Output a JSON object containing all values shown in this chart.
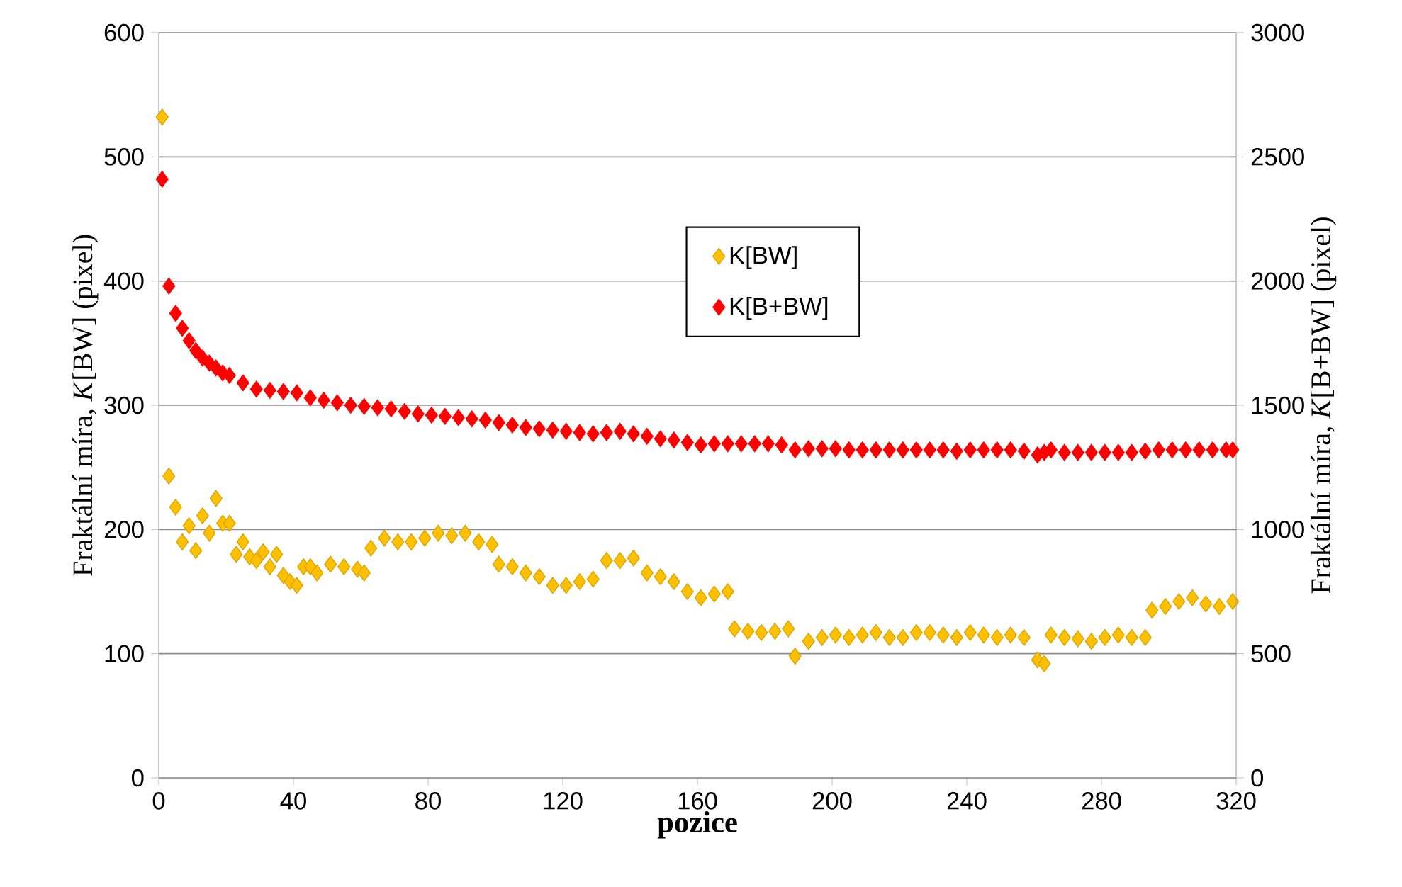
{
  "chart_data": {
    "type": "scatter",
    "xlabel": "pozice",
    "ylabel": "Fraktální míra, *K*[BW] (pixel)",
    "y2label": "Fraktální míra, *K*[B+BW] (pixel)",
    "xlim": [
      0,
      320
    ],
    "xticks": [
      0,
      40,
      80,
      120,
      160,
      200,
      240,
      280,
      320
    ],
    "ylim": [
      0,
      600
    ],
    "yticks": [
      0,
      100,
      200,
      300,
      400,
      500,
      600
    ],
    "y2lim": [
      0,
      3000
    ],
    "y2ticks": [
      0,
      500,
      1000,
      1500,
      2000,
      2500,
      3000
    ],
    "grid": "y",
    "legend": "top",
    "marker": "diamond",
    "series": [
      {
        "name": "K[BW]",
        "color": "#ffc000",
        "axis": "y",
        "x": [
          1,
          3,
          5,
          7,
          9,
          11,
          13,
          15,
          17,
          19,
          21,
          23,
          25,
          27,
          29,
          31,
          33,
          35,
          37,
          39,
          41,
          43,
          45,
          47,
          51,
          55,
          59,
          61,
          63,
          67,
          71,
          75,
          79,
          83,
          87,
          91,
          95,
          99,
          101,
          105,
          109,
          113,
          117,
          121,
          125,
          129,
          133,
          137,
          141,
          145,
          149,
          153,
          157,
          161,
          165,
          169,
          171,
          175,
          179,
          183,
          187,
          189,
          193,
          197,
          201,
          205,
          209,
          213,
          217,
          221,
          225,
          229,
          233,
          237,
          241,
          245,
          249,
          253,
          257,
          261,
          263,
          265,
          269,
          273,
          277,
          281,
          285,
          289,
          293,
          295,
          299,
          303,
          307,
          311,
          315,
          319
        ],
        "values": [
          532,
          243,
          218,
          190,
          203,
          183,
          211,
          197,
          225,
          205,
          205,
          180,
          190,
          178,
          175,
          182,
          170,
          180,
          163,
          158,
          155,
          170,
          170,
          165,
          172,
          170,
          168,
          165,
          185,
          193,
          190,
          190,
          193,
          197,
          195,
          197,
          190,
          188,
          172,
          170,
          165,
          162,
          155,
          155,
          158,
          160,
          175,
          175,
          177,
          165,
          162,
          158,
          150,
          145,
          148,
          150,
          120,
          118,
          117,
          118,
          120,
          98,
          110,
          113,
          115,
          113,
          115,
          117,
          113,
          113,
          117,
          117,
          115,
          113,
          117,
          115,
          113,
          115,
          113,
          95,
          92,
          115,
          113,
          112,
          110,
          113,
          115,
          113,
          113,
          135,
          138,
          142,
          145,
          140,
          138,
          142
        ]
      },
      {
        "name": "K[B+BW]",
        "color": "#ff0000",
        "axis": "y2",
        "x": [
          1,
          3,
          5,
          7,
          9,
          11,
          13,
          15,
          17,
          19,
          21,
          25,
          29,
          33,
          37,
          41,
          45,
          49,
          53,
          57,
          61,
          65,
          69,
          73,
          77,
          81,
          85,
          89,
          93,
          97,
          101,
          105,
          109,
          113,
          117,
          121,
          125,
          129,
          133,
          137,
          141,
          145,
          149,
          153,
          157,
          161,
          165,
          169,
          173,
          177,
          181,
          185,
          189,
          193,
          197,
          201,
          205,
          209,
          213,
          217,
          221,
          225,
          229,
          233,
          237,
          241,
          245,
          249,
          253,
          257,
          261,
          263,
          265,
          269,
          273,
          277,
          281,
          285,
          289,
          293,
          297,
          301,
          305,
          309,
          313,
          317,
          319
        ],
        "values": [
          2410,
          1980,
          1870,
          1810,
          1760,
          1720,
          1690,
          1670,
          1650,
          1630,
          1620,
          1590,
          1565,
          1560,
          1555,
          1550,
          1530,
          1520,
          1510,
          1500,
          1495,
          1490,
          1485,
          1475,
          1465,
          1460,
          1455,
          1450,
          1445,
          1440,
          1430,
          1420,
          1410,
          1405,
          1400,
          1395,
          1390,
          1385,
          1390,
          1395,
          1385,
          1375,
          1365,
          1360,
          1350,
          1340,
          1345,
          1345,
          1345,
          1345,
          1345,
          1340,
          1320,
          1325,
          1325,
          1325,
          1320,
          1320,
          1320,
          1320,
          1320,
          1320,
          1320,
          1320,
          1315,
          1320,
          1320,
          1320,
          1320,
          1315,
          1300,
          1310,
          1320,
          1310,
          1310,
          1310,
          1310,
          1310,
          1310,
          1315,
          1320,
          1320,
          1320,
          1320,
          1320,
          1320,
          1320
        ]
      }
    ]
  }
}
